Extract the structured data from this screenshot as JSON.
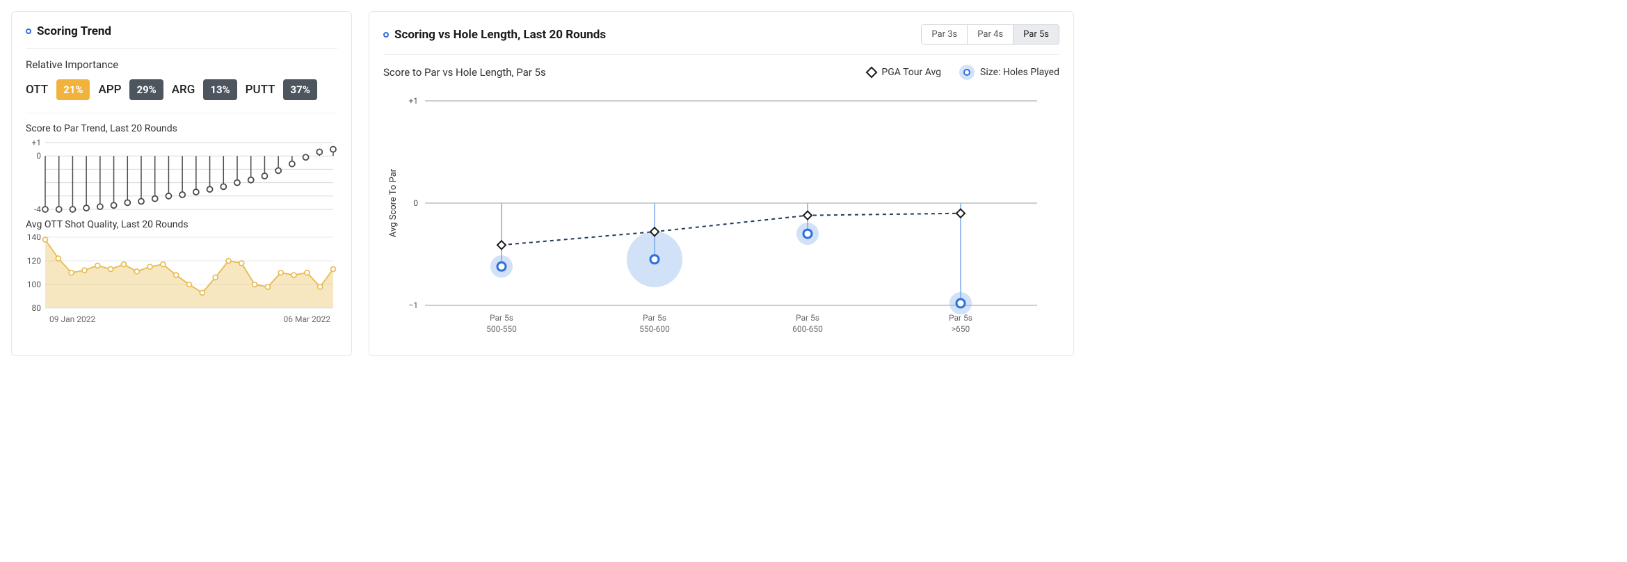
{
  "left": {
    "title": "Scoring Trend",
    "relative_importance": {
      "label": "Relative Importance",
      "items": [
        {
          "name": "OTT",
          "value": "21%",
          "bg": "#f1b33c"
        },
        {
          "name": "APP",
          "value": "29%",
          "bg": "#4d555e"
        },
        {
          "name": "ARG",
          "value": "13%",
          "bg": "#4d555e"
        },
        {
          "name": "PUTT",
          "value": "37%",
          "bg": "#4d555e"
        }
      ]
    },
    "score_trend": {
      "title": "Score to Par Trend, Last 20 Rounds",
      "ymin": -4,
      "ymax": 1,
      "ytick_step": 1,
      "show_labels_at": [
        1,
        0,
        -4
      ],
      "line_color": "#4a4a4a",
      "marker_fill": "#ffffff",
      "marker_stroke": "#4a4a4a",
      "grid_color": "#d6d8dc",
      "values": [
        -4.0,
        -4.0,
        -4.0,
        -3.9,
        -3.8,
        -3.7,
        -3.5,
        -3.4,
        -3.2,
        -3.0,
        -2.9,
        -2.7,
        -2.5,
        -2.3,
        -2.0,
        -1.8,
        -1.5,
        -1.1,
        -0.6,
        -0.1,
        0.3,
        0.5
      ],
      "date_left": "09 Jan 2022",
      "date_right": "06 Mar 2022"
    },
    "ott": {
      "title": "Avg OTT Shot Quality, Last 20 Rounds",
      "ymin": 80,
      "ymax": 140,
      "ytick_step": 20,
      "line_color": "#e9b94b",
      "fill_color": "rgba(233,185,75,0.35)",
      "marker_fill": "#ffffff",
      "marker_stroke": "#e9b94b",
      "grid_color": "#e7e9ec",
      "values": [
        138,
        122,
        110,
        112,
        116,
        113,
        117,
        111,
        115,
        117,
        108,
        100,
        93,
        106,
        120,
        118,
        100,
        98,
        110,
        108,
        110,
        98,
        113
      ]
    }
  },
  "right": {
    "title": "Scoring vs Hole Length, Last 20 Rounds",
    "tabs": [
      "Par 3s",
      "Par 4s",
      "Par 5s"
    ],
    "active_tab": 2,
    "subtitle": "Score to Par vs Hole Length, Par 5s",
    "legend": {
      "diamond": "PGA Tour Avg",
      "bubble": "Size: Holes Played"
    },
    "chart": {
      "ymin": -1,
      "ymax": 1,
      "ytick_step": 1,
      "y_axis_title": "Avg Score To Par",
      "grid_color": "#9a9ea4",
      "stem_color": "#9dbef0",
      "diamond_stroke": "#1a1a1a",
      "diamond_fill": "#ffffff",
      "bubble_fill": "rgba(120,168,235,0.35)",
      "bubble_ring_stroke": "#2e6fdb",
      "bubble_ring_fill": "#ffffff",
      "dash_color": "#1f3a5f",
      "categories": [
        {
          "line1": "Par 5s",
          "line2": "500-550",
          "pga": -0.41,
          "player": -0.62,
          "size": 16
        },
        {
          "line1": "Par 5s",
          "line2": "550-600",
          "pga": -0.28,
          "player": -0.55,
          "size": 40
        },
        {
          "line1": "Par 5s",
          "line2": "600-650",
          "pga": -0.12,
          "player": -0.3,
          "size": 16
        },
        {
          "line1": "Par 5s",
          "line2": ">650",
          "pga": -0.1,
          "player": -0.98,
          "size": 16
        }
      ]
    }
  }
}
